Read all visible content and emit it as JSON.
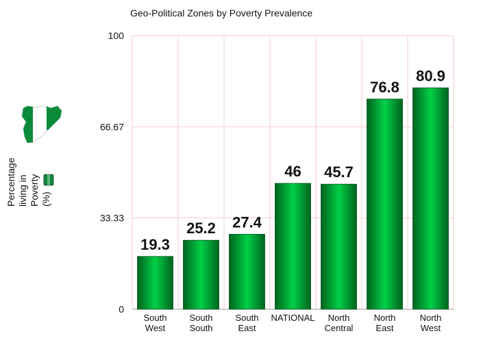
{
  "chart_data": {
    "type": "bar",
    "title": "Geo-Political Zones by Poverty Prevalence",
    "ylabel_lines": [
      "Percentage",
      "living in",
      "Poverty",
      "(%)"
    ],
    "xlabel": "",
    "ylim": [
      0,
      100
    ],
    "yticks": [
      0,
      33.33,
      66.67,
      100
    ],
    "ytick_labels": [
      "0",
      "33.33",
      "66.67",
      "100"
    ],
    "categories": [
      [
        "South",
        "West"
      ],
      [
        "South",
        "South"
      ],
      [
        "South",
        "East"
      ],
      [
        "NATIONAL"
      ],
      [
        "North",
        "Central"
      ],
      [
        "North",
        "East"
      ],
      [
        "North",
        "West"
      ]
    ],
    "values": [
      19.3,
      25.2,
      27.4,
      46,
      45.7,
      76.8,
      80.9
    ],
    "value_labels": [
      "19.3",
      "25.2",
      "27.4",
      "46",
      "45.7",
      "76.8",
      "80.9"
    ],
    "bar_color": "#00b33c",
    "bar_dark": "#006e22",
    "grid_color": "#f5cccc"
  }
}
